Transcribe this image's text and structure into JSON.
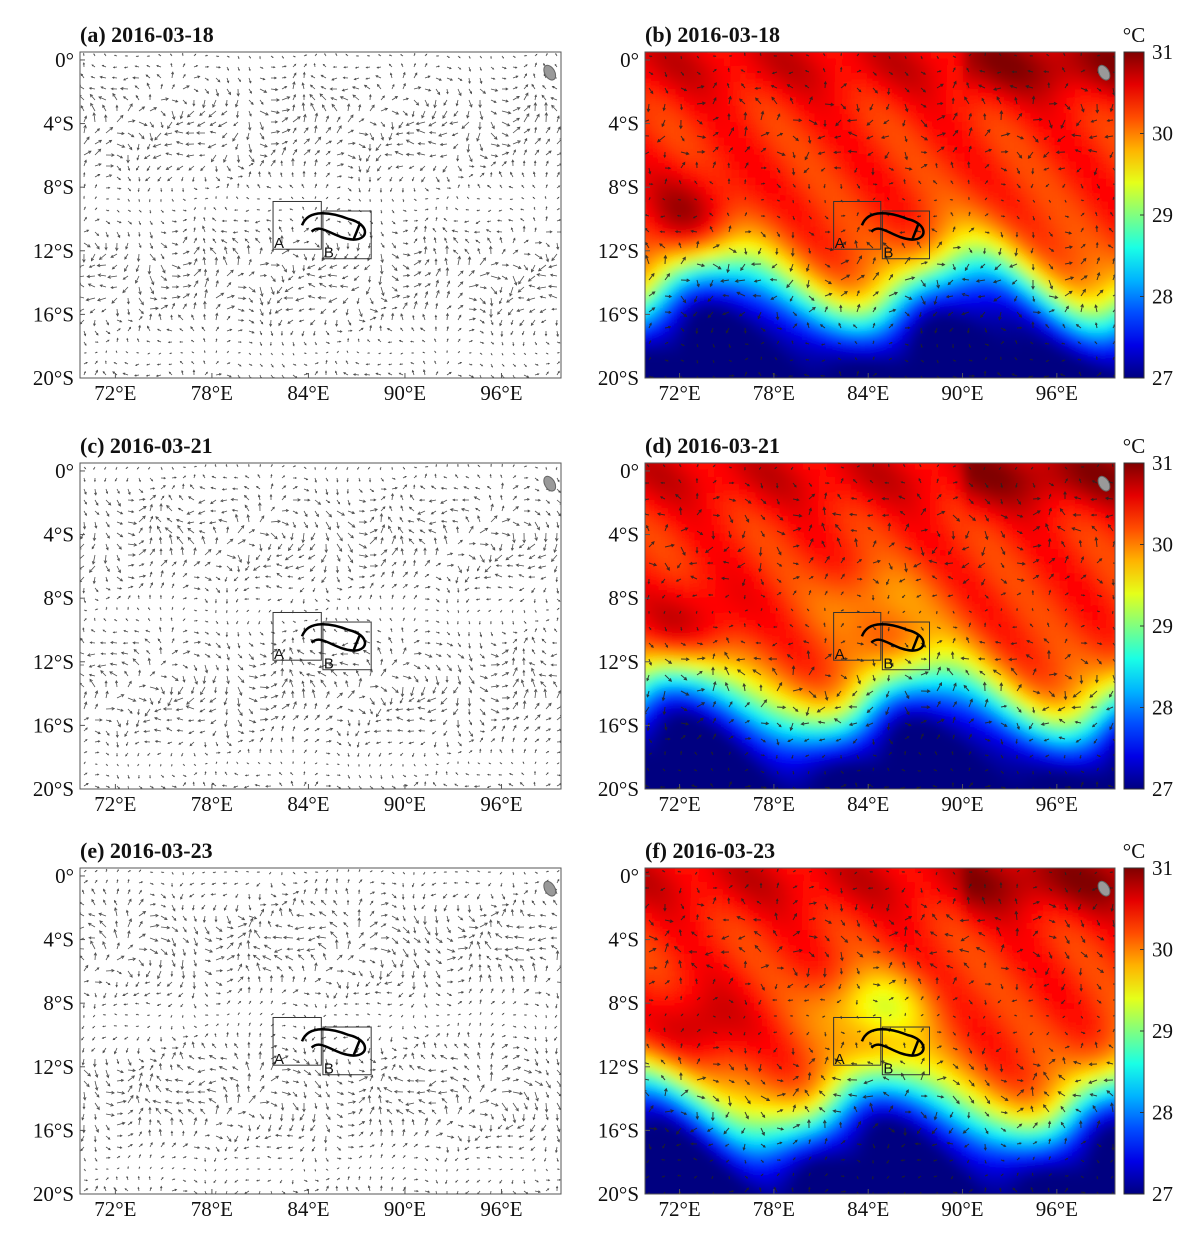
{
  "axes": {
    "xticks": [
      {
        "value": 72,
        "label": "72°E"
      },
      {
        "value": 78,
        "label": "78°E"
      },
      {
        "value": 84,
        "label": "84°E"
      },
      {
        "value": 90,
        "label": "90°E"
      },
      {
        "value": 96,
        "label": "96°E"
      }
    ],
    "yticks": [
      {
        "value": 0,
        "label": "0°"
      },
      {
        "value": -4,
        "label": "4°S"
      },
      {
        "value": -8,
        "label": "8°S"
      },
      {
        "value": -12,
        "label": "12°S"
      },
      {
        "value": -16,
        "label": "16°S"
      },
      {
        "value": -20,
        "label": "20°S"
      }
    ]
  },
  "boxes": [
    "A",
    "B"
  ],
  "colorbar": {
    "unit": "°C",
    "clim": [
      27,
      31
    ],
    "ticks": [
      27,
      28,
      29,
      30,
      31
    ]
  },
  "panels": [
    {
      "label": "(a) 2016-03-18",
      "kind": "velocity"
    },
    {
      "label": "(b) 2016-03-18",
      "kind": "sst"
    },
    {
      "label": "(c) 2016-03-21",
      "kind": "velocity"
    },
    {
      "label": "(d) 2016-03-21",
      "kind": "sst"
    },
    {
      "label": "(e) 2016-03-23",
      "kind": "velocity"
    },
    {
      "label": "(f) 2016-03-23",
      "kind": "sst"
    }
  ]
}
